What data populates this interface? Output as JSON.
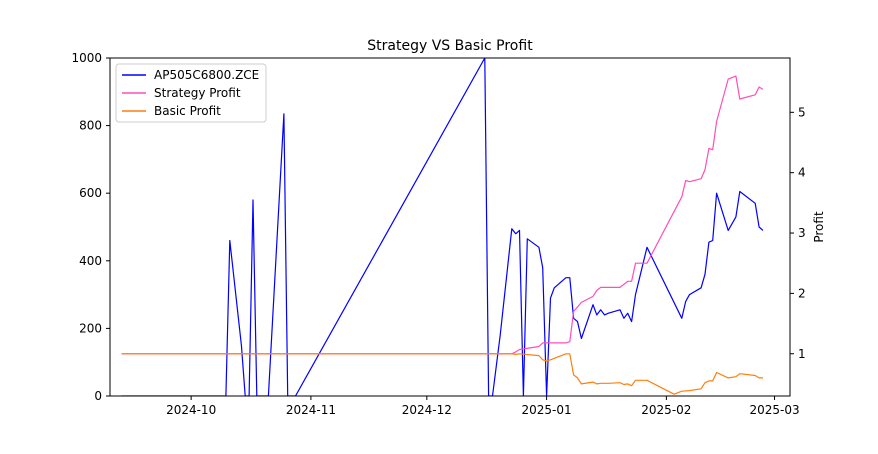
{
  "chart_data": {
    "type": "line",
    "title": "Strategy VS Basic Profit",
    "xlabel": "",
    "ylabel_left": "",
    "ylabel_right": "Profit",
    "xlim": [
      "2024-09-10",
      "2025-03-05"
    ],
    "ylim_left": [
      0,
      1000
    ],
    "ylim_right": [
      0.3,
      5.9
    ],
    "x_ticks": [
      "2024-10",
      "2024-11",
      "2024-12",
      "2025-01",
      "2025-02",
      "2025-03"
    ],
    "x_tick_dates": [
      "2024-10-01",
      "2024-11-01",
      "2024-12-01",
      "2025-01-01",
      "2025-02-01",
      "2025-03-01"
    ],
    "y_ticks_left": [
      0,
      200,
      400,
      600,
      800,
      1000
    ],
    "y_ticks_right": [
      1,
      2,
      3,
      4,
      5
    ],
    "grid": false,
    "legend_position": "top-left",
    "series": [
      {
        "name": "AP505C6800.ZCE",
        "axis": "left",
        "color": "#0000ff",
        "x": [
          "2024-09-13",
          "2024-10-10",
          "2024-10-11",
          "2024-10-14",
          "2024-10-15",
          "2024-10-16",
          "2024-10-17",
          "2024-10-18",
          "2024-10-21",
          "2024-10-25",
          "2024-10-26",
          "2024-10-28",
          "2024-12-16",
          "2024-12-17",
          "2024-12-18",
          "2024-12-20",
          "2024-12-23",
          "2024-12-24",
          "2024-12-25",
          "2024-12-26",
          "2024-12-27",
          "2024-12-30",
          "2024-12-31",
          "2025-01-01",
          "2025-01-02",
          "2025-01-03",
          "2025-01-06",
          "2025-01-07",
          "2025-01-08",
          "2025-01-09",
          "2025-01-10",
          "2025-01-13",
          "2025-01-14",
          "2025-01-15",
          "2025-01-16",
          "2025-01-17",
          "2025-01-20",
          "2025-01-21",
          "2025-01-22",
          "2025-01-23",
          "2025-01-24",
          "2025-01-27",
          "2025-02-05",
          "2025-02-06",
          "2025-02-07",
          "2025-02-10",
          "2025-02-11",
          "2025-02-12",
          "2025-02-13",
          "2025-02-14",
          "2025-02-17",
          "2025-02-19",
          "2025-02-20",
          "2025-02-24",
          "2025-02-25",
          "2025-02-26"
        ],
        "values": [
          0,
          0,
          460,
          150,
          0,
          0,
          580,
          0,
          0,
          835,
          0,
          0,
          1000,
          0,
          0,
          180,
          495,
          480,
          490,
          0,
          465,
          440,
          380,
          0,
          290,
          320,
          350,
          350,
          230,
          220,
          170,
          270,
          240,
          255,
          240,
          245,
          255,
          230,
          245,
          220,
          300,
          440,
          230,
          280,
          300,
          320,
          360,
          455,
          460,
          600,
          490,
          530,
          605,
          570,
          500,
          490
        ]
      },
      {
        "name": "Strategy Profit",
        "axis": "right",
        "color": "#ff4fb7",
        "x": [
          "2024-09-13",
          "2024-12-23",
          "2024-12-24",
          "2024-12-25",
          "2024-12-30",
          "2024-12-31",
          "2025-01-01",
          "2025-01-02",
          "2025-01-06",
          "2025-01-07",
          "2025-01-08",
          "2025-01-10",
          "2025-01-13",
          "2025-01-14",
          "2025-01-15",
          "2025-01-17",
          "2025-01-20",
          "2025-01-22",
          "2025-01-23",
          "2025-01-24",
          "2025-01-27",
          "2025-02-05",
          "2025-02-06",
          "2025-02-07",
          "2025-02-10",
          "2025-02-11",
          "2025-02-12",
          "2025-02-13",
          "2025-02-14",
          "2025-02-17",
          "2025-02-19",
          "2025-02-20",
          "2025-02-24",
          "2025-02-25",
          "2025-02-26"
        ],
        "values": [
          1,
          1,
          1.03,
          1.07,
          1.12,
          1.18,
          1.18,
          1.18,
          1.18,
          1.2,
          1.7,
          1.85,
          1.95,
          2.05,
          2.1,
          2.1,
          2.1,
          2.2,
          2.2,
          2.5,
          2.5,
          3.6,
          3.87,
          3.85,
          3.9,
          4.05,
          4.4,
          4.38,
          4.85,
          5.55,
          5.6,
          5.22,
          5.29,
          5.42,
          5.38
        ]
      },
      {
        "name": "Basic Profit",
        "axis": "right",
        "color": "#ff7f0e",
        "x": [
          "2024-09-13",
          "2024-12-23",
          "2024-12-24",
          "2024-12-25",
          "2024-12-30",
          "2024-12-31",
          "2025-01-01",
          "2025-01-02",
          "2025-01-06",
          "2025-01-07",
          "2025-01-08",
          "2025-01-09",
          "2025-01-10",
          "2025-01-13",
          "2025-01-14",
          "2025-01-15",
          "2025-01-17",
          "2025-01-20",
          "2025-01-21",
          "2025-01-22",
          "2025-01-23",
          "2025-01-24",
          "2025-01-27",
          "2025-02-03",
          "2025-02-05",
          "2025-02-07",
          "2025-02-10",
          "2025-02-11",
          "2025-02-12",
          "2025-02-13",
          "2025-02-14",
          "2025-02-17",
          "2025-02-19",
          "2025-02-20",
          "2025-02-24",
          "2025-02-25",
          "2025-02-26"
        ],
        "values": [
          1,
          1,
          0.99,
          1.0,
          0.97,
          0.9,
          0.88,
          0.9,
          1.0,
          1.0,
          0.65,
          0.6,
          0.5,
          0.53,
          0.5,
          0.51,
          0.51,
          0.52,
          0.49,
          0.5,
          0.47,
          0.56,
          0.56,
          0.33,
          0.38,
          0.39,
          0.42,
          0.52,
          0.55,
          0.55,
          0.69,
          0.6,
          0.62,
          0.67,
          0.64,
          0.6,
          0.6
        ]
      }
    ]
  }
}
